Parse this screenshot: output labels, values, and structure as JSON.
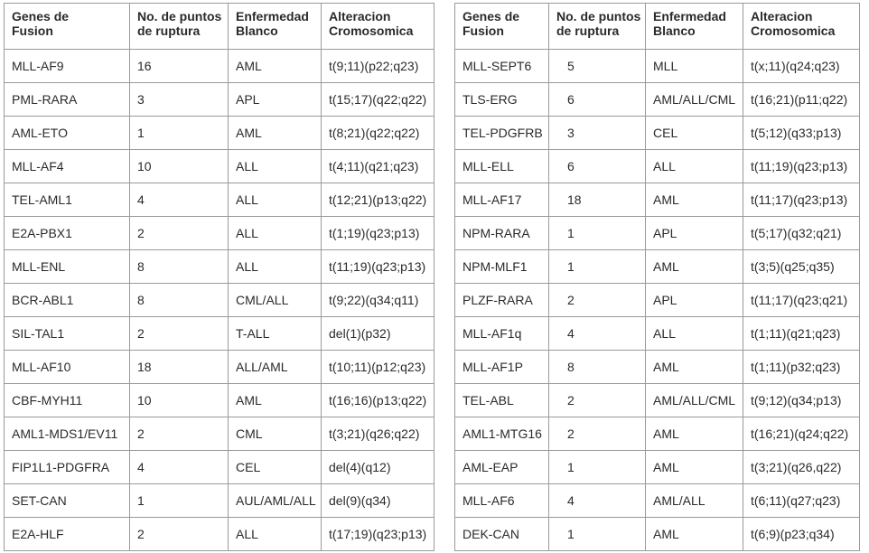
{
  "left_table": {
    "headers": [
      "Genes de\nFusion",
      "No. de puntos\nde ruptura",
      "Enfermedad\nBlanco",
      "Alteracion\nCromosomica"
    ],
    "rows": [
      [
        "MLL-AF9",
        "16",
        "AML",
        "t(9;11)(p22;q23)"
      ],
      [
        "PML-RARA",
        "3",
        "APL",
        "t(15;17)(q22;q22)"
      ],
      [
        "AML-ETO",
        "1",
        "AML",
        "t(8;21)(q22;q22)"
      ],
      [
        "MLL-AF4",
        "10",
        "ALL",
        "t(4;11)(q21;q23)"
      ],
      [
        "TEL-AML1",
        "4",
        "ALL",
        "t(12;21)(p13;q22)"
      ],
      [
        "E2A-PBX1",
        "2",
        "ALL",
        "t(1;19)(q23;p13)"
      ],
      [
        "MLL-ENL",
        "8",
        "ALL",
        "t(11;19)(q23;p13)"
      ],
      [
        "BCR-ABL1",
        "8",
        "CML/ALL",
        "t(9;22)(q34;q11)"
      ],
      [
        "SIL-TAL1",
        "2",
        "T-ALL",
        "del(1)(p32)"
      ],
      [
        "MLL-AF10",
        "18",
        "ALL/AML",
        "t(10;11)(p12;q23)"
      ],
      [
        "CBF-MYH11",
        "10",
        "AML",
        "t(16;16)(p13;q22)"
      ],
      [
        "AML1-MDS1/EV11",
        "2",
        "CML",
        "t(3;21)(q26;q22)"
      ],
      [
        "FIP1L1-PDGFRA",
        "4",
        "CEL",
        "del(4)(q12)"
      ],
      [
        "SET-CAN",
        "1",
        "AUL/AML/ALL",
        "del(9)(q34)"
      ],
      [
        "E2A-HLF",
        "2",
        "ALL",
        "t(17;19)(q23;p13)"
      ]
    ]
  },
  "right_table": {
    "headers": [
      "Genes de\nFusion",
      "No. de puntos\nde ruptura",
      "Enfermedad\nBlanco",
      "Alteracion\nCromosomica"
    ],
    "rows": [
      [
        "MLL-SEPT6",
        "5",
        "MLL",
        "t(x;11)(q24;q23)"
      ],
      [
        "TLS-ERG",
        "6",
        "AML/ALL/CML",
        "t(16;21)(p11;q22)"
      ],
      [
        "TEL-PDGFRB",
        "3",
        "CEL",
        "t(5;12)(q33;p13)"
      ],
      [
        "MLL-ELL",
        "6",
        "ALL",
        "t(11;19)(q23;p13)"
      ],
      [
        "MLL-AF17",
        "18",
        "AML",
        "t(11;17)(q23;p13)"
      ],
      [
        "NPM-RARA",
        "1",
        "APL",
        "t(5;17)(q32;q21)"
      ],
      [
        "NPM-MLF1",
        "1",
        "AML",
        "t(3;5)(q25;q35)"
      ],
      [
        "PLZF-RARA",
        "2",
        "APL",
        "t(11;17)(q23;q21)"
      ],
      [
        "MLL-AF1q",
        "4",
        "ALL",
        "t(1;11)(q21;q23)"
      ],
      [
        "MLL-AF1P",
        "8",
        "AML",
        "t(1;11)(p32;q23)"
      ],
      [
        "TEL-ABL",
        "2",
        "AML/ALL/CML",
        "t(9;12)(q34;p13)"
      ],
      [
        "AML1-MTG16",
        "2",
        "AML",
        "t(16;21)(q24;q22)"
      ],
      [
        "AML-EAP",
        "1",
        "AML",
        "t(3;21)(q26,q22)"
      ],
      [
        "MLL-AF6",
        "4",
        "AML/ALL",
        "t(6;11)(q27;q23)"
      ],
      [
        "DEK-CAN",
        "1",
        "AML",
        "t(6;9)(p23;q34)"
      ]
    ]
  }
}
